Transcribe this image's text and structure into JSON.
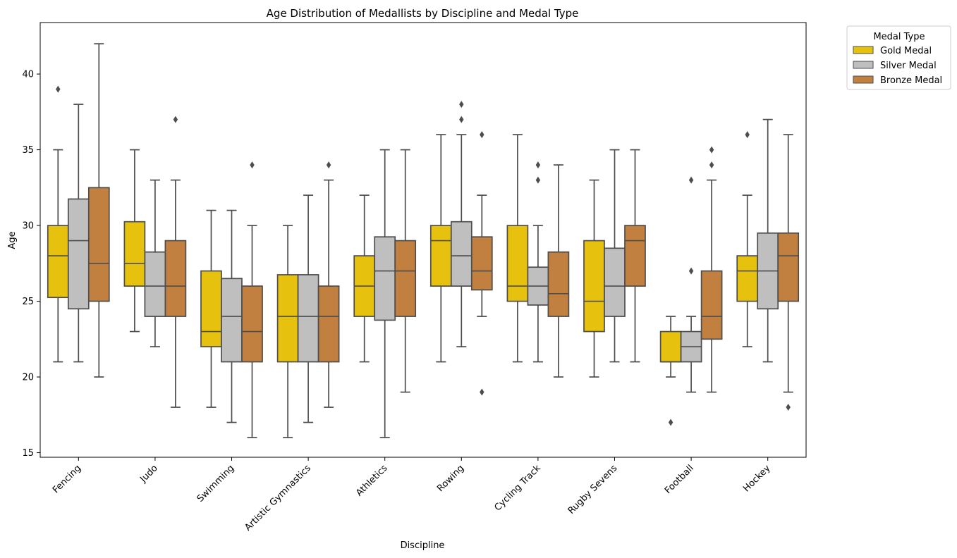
{
  "chart_data": {
    "type": "box",
    "title": "Age Distribution of Medallists by Discipline and Medal Type",
    "xlabel": "Discipline",
    "ylabel": "Age",
    "ylim": [
      14.7,
      43.4
    ],
    "yticks": [
      15,
      20,
      25,
      30,
      35,
      40
    ],
    "categories": [
      "Fencing",
      "Judo",
      "Swimming",
      "Artistic Gymnastics",
      "Athletics",
      "Rowing",
      "Cycling Track",
      "Rugby Sevens",
      "Football",
      "Hockey"
    ],
    "legend": {
      "title": "Medal Type",
      "placement": "upper-right-outside",
      "entries": [
        "Gold Medal",
        "Silver Medal",
        "Bronze Medal"
      ]
    },
    "colors": {
      "Gold Medal": "#e6c20f",
      "Silver Medal": "#bfbfbf",
      "Bronze Medal": "#c1803f",
      "line": "#4d4d4d"
    },
    "series": [
      {
        "name": "Gold Medal",
        "boxes": [
          {
            "min": 21,
            "q1": 25.25,
            "median": 28,
            "q3": 30,
            "max": 35,
            "outliers": [
              39
            ]
          },
          {
            "min": 23,
            "q1": 26,
            "median": 27.5,
            "q3": 30.25,
            "max": 35,
            "outliers": []
          },
          {
            "min": 18,
            "q1": 22,
            "median": 23,
            "q3": 27,
            "max": 31,
            "outliers": []
          },
          {
            "min": 16,
            "q1": 21,
            "median": 24,
            "q3": 26.75,
            "max": 30,
            "outliers": []
          },
          {
            "min": 21,
            "q1": 24,
            "median": 26,
            "q3": 28,
            "max": 32,
            "outliers": []
          },
          {
            "min": 21,
            "q1": 26,
            "median": 29,
            "q3": 30,
            "max": 36,
            "outliers": []
          },
          {
            "min": 21,
            "q1": 25,
            "median": 26,
            "q3": 30,
            "max": 36,
            "outliers": []
          },
          {
            "min": 20,
            "q1": 23,
            "median": 25,
            "q3": 29,
            "max": 33,
            "outliers": []
          },
          {
            "min": 20,
            "q1": 21,
            "median": 21,
            "q3": 23,
            "max": 24,
            "outliers": [
              17
            ]
          },
          {
            "min": 22,
            "q1": 25,
            "median": 27,
            "q3": 28,
            "max": 32,
            "outliers": [
              36
            ]
          }
        ]
      },
      {
        "name": "Silver Medal",
        "boxes": [
          {
            "min": 21,
            "q1": 24.5,
            "median": 29,
            "q3": 31.75,
            "max": 38,
            "outliers": []
          },
          {
            "min": 22,
            "q1": 24,
            "median": 26,
            "q3": 28.25,
            "max": 33,
            "outliers": []
          },
          {
            "min": 17,
            "q1": 21,
            "median": 24,
            "q3": 26.5,
            "max": 31,
            "outliers": []
          },
          {
            "min": 17,
            "q1": 21,
            "median": 24,
            "q3": 26.75,
            "max": 32,
            "outliers": []
          },
          {
            "min": 16,
            "q1": 23.75,
            "median": 27,
            "q3": 29.25,
            "max": 35,
            "outliers": []
          },
          {
            "min": 22,
            "q1": 26,
            "median": 28,
            "q3": 30.25,
            "max": 36,
            "outliers": [
              37,
              38
            ]
          },
          {
            "min": 21,
            "q1": 24.75,
            "median": 26,
            "q3": 27.25,
            "max": 30,
            "outliers": [
              33,
              34
            ]
          },
          {
            "min": 21,
            "q1": 24,
            "median": 26,
            "q3": 28.5,
            "max": 35,
            "outliers": []
          },
          {
            "min": 19,
            "q1": 21,
            "median": 22,
            "q3": 23,
            "max": 24,
            "outliers": [
              27,
              33
            ]
          },
          {
            "min": 21,
            "q1": 24.5,
            "median": 27,
            "q3": 29.5,
            "max": 37,
            "outliers": []
          }
        ]
      },
      {
        "name": "Bronze Medal",
        "boxes": [
          {
            "min": 20,
            "q1": 25,
            "median": 27.5,
            "q3": 32.5,
            "max": 42,
            "outliers": []
          },
          {
            "min": 18,
            "q1": 24,
            "median": 26,
            "q3": 29,
            "max": 33,
            "outliers": [
              37
            ]
          },
          {
            "min": 16,
            "q1": 21,
            "median": 23,
            "q3": 26,
            "max": 30,
            "outliers": [
              34
            ]
          },
          {
            "min": 18,
            "q1": 21,
            "median": 24,
            "q3": 26,
            "max": 33,
            "outliers": [
              34
            ]
          },
          {
            "min": 19,
            "q1": 24,
            "median": 27,
            "q3": 29,
            "max": 35,
            "outliers": []
          },
          {
            "min": 24,
            "q1": 25.75,
            "median": 27,
            "q3": 29.25,
            "max": 32,
            "outliers": [
              19,
              36
            ]
          },
          {
            "min": 20,
            "q1": 24,
            "median": 25.5,
            "q3": 28.25,
            "max": 34,
            "outliers": []
          },
          {
            "min": 21,
            "q1": 26,
            "median": 29,
            "q3": 30,
            "max": 35,
            "outliers": []
          },
          {
            "min": 19,
            "q1": 22.5,
            "median": 24,
            "q3": 27,
            "max": 33,
            "outliers": [
              34,
              35
            ]
          },
          {
            "min": 19,
            "q1": 25,
            "median": 28,
            "q3": 29.5,
            "max": 36,
            "outliers": [
              18
            ]
          }
        ]
      }
    ]
  }
}
